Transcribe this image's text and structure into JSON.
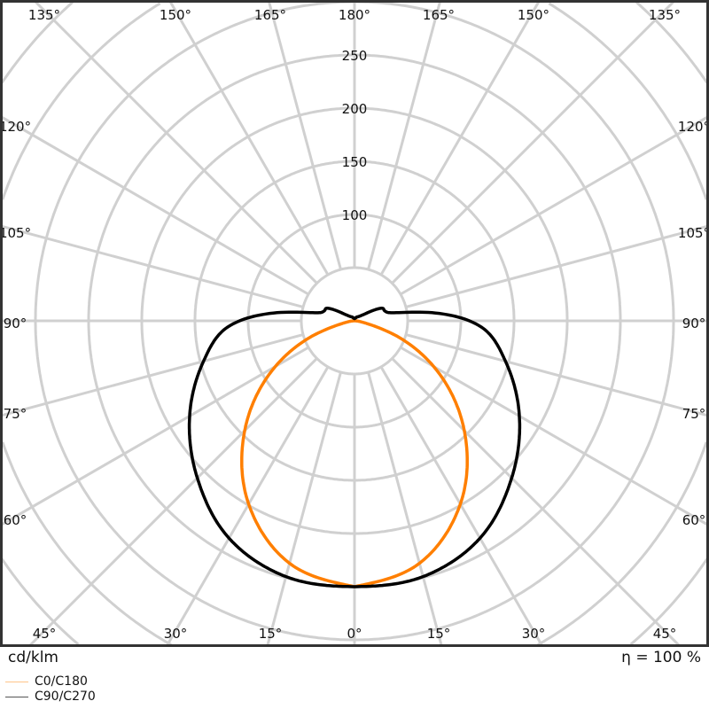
{
  "chart_data": {
    "type": "polar-line",
    "unit_label": "cd/klm",
    "efficiency_label": "η = 100 %",
    "radial_ticks": [
      100,
      150,
      200,
      250
    ],
    "radial_tick_labels": [
      "100",
      "150",
      "200",
      "250"
    ],
    "radial_grid": [
      50,
      100,
      150,
      200,
      250,
      300,
      350,
      400,
      450
    ],
    "angle_grid_step_deg": 15,
    "angle_labels": {
      "top": [
        "135°",
        "150°",
        "165°",
        "180°",
        "165°",
        "150°",
        "135°"
      ],
      "left": [
        "120°",
        "105°",
        "90°",
        "75°",
        "60°"
      ],
      "right": [
        "120°",
        "105°",
        "90°",
        "75°",
        "60°"
      ],
      "bottom": [
        "45°",
        "30°",
        "15°",
        "0°",
        "15°",
        "30°",
        "45°"
      ]
    },
    "grid": true,
    "legend_position": "bottom-left",
    "series": [
      {
        "name": "C0/C180",
        "color": "#ff7f00",
        "legend_color": "#ffc58a",
        "gamma": [
          0,
          15,
          30,
          45,
          60,
          70,
          75,
          80,
          90
        ],
        "values": [
          250,
          236,
          199,
          146,
          86,
          43,
          20,
          8,
          0
        ]
      },
      {
        "name": "C90/C270",
        "color": "#000000",
        "legend_color": "#555555",
        "gamma": [
          0,
          15,
          30,
          45,
          60,
          75,
          85,
          90,
          95,
          100,
          103,
          108,
          115,
          125,
          150,
          180
        ],
        "values": [
          250,
          249,
          236,
          209,
          179,
          147,
          126,
          108,
          80,
          45,
          34,
          30,
          28,
          10,
          4,
          2
        ]
      }
    ]
  }
}
